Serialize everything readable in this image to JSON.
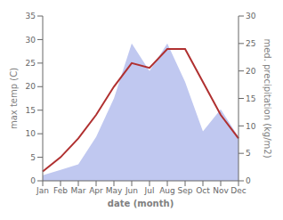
{
  "chart_data": {
    "type": "line",
    "categories": [
      "Jan",
      "Feb",
      "Mar",
      "Apr",
      "May",
      "Jun",
      "Jul",
      "Aug",
      "Sep",
      "Oct",
      "Nov",
      "Dec"
    ],
    "xlabel": "date (month)",
    "ylabel": "max temp (C)",
    "y2label": "med. precipitation (kg/m2)",
    "ylim": [
      0,
      35
    ],
    "yticks": [
      0,
      5,
      10,
      15,
      20,
      25,
      30,
      35
    ],
    "y2lim": [
      0,
      30
    ],
    "y2ticks": [
      0,
      5,
      10,
      15,
      20,
      25,
      30
    ],
    "grid": false,
    "series": [
      {
        "type": "area",
        "color": "#c0c8f0",
        "axis": "y2",
        "values": [
          1,
          2,
          3,
          8,
          15,
          25,
          20,
          25,
          18,
          9,
          13,
          8
        ]
      },
      {
        "type": "line",
        "color": "#b03030",
        "values": [
          2,
          5,
          9,
          14,
          20,
          25,
          24,
          28,
          28,
          21,
          14,
          9
        ]
      }
    ]
  }
}
